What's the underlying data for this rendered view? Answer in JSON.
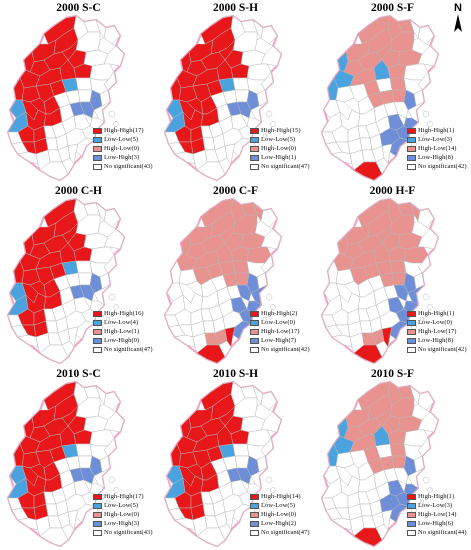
{
  "colors": {
    "high_high": "#e8181a",
    "low_low": "#4aa3df",
    "high_low": "#e89390",
    "low_high": "#6e8fd8",
    "no_significant": "#ffffff",
    "boundary": "#b9b9b9",
    "outline": "#f0a8c8"
  },
  "north_arrow": {
    "label": "N",
    "icon": "north-arrow-icon"
  },
  "legend_labels": {
    "high_high": "High-High",
    "low_low": "Low-Low",
    "high_low": "High-Low",
    "low_high": "Low-High",
    "no_significant": "No significant"
  },
  "panels": [
    {
      "title": "2000 S-C",
      "pattern": "north-high",
      "legend": [
        "High-High(17)",
        "Low-Low(5)",
        "High-Low(0)",
        "Low-High(3)",
        "No significant(43)"
      ]
    },
    {
      "title": "2000 S-H",
      "pattern": "north-high",
      "legend": [
        "High-High(15)",
        "Low-Low(5)",
        "High-Low(0)",
        "Low-High(1)",
        "No significant(47)"
      ]
    },
    {
      "title": "2000 S-F",
      "pattern": "highlow-center",
      "legend": [
        "High-High(1)",
        "Low-Low(3)",
        "High-Low(14)",
        "Low-High(8)",
        "No significant(42)"
      ]
    },
    {
      "title": "2000 C-H",
      "pattern": "north-high",
      "legend": [
        "High-High(16)",
        "Low-Low(4)",
        "High-Low(1)",
        "Low-High(0)",
        "No significant(47)"
      ]
    },
    {
      "title": "2000 C-F",
      "pattern": "highlow-wide",
      "legend": [
        "High-High(2)",
        "Low-Low(0)",
        "High-Low(17)",
        "Low-High(7)",
        "No significant(42)"
      ]
    },
    {
      "title": "2000 H-F",
      "pattern": "highlow-wide",
      "legend": [
        "High-High(1)",
        "Low-Low(0)",
        "High-Low(17)",
        "Low-High(8)",
        "No significant(42)"
      ]
    },
    {
      "title": "2010 S-C",
      "pattern": "north-high",
      "legend": [
        "High-High(17)",
        "Low-Low(5)",
        "High-Low(0)",
        "Low-High(3)",
        "No significant(43)"
      ]
    },
    {
      "title": "2010 S-H",
      "pattern": "north-high",
      "legend": [
        "High-High(14)",
        "Low-Low(5)",
        "High-Low(0)",
        "Low-High(2)",
        "No significant(47)"
      ]
    },
    {
      "title": "2010 S-F",
      "pattern": "highlow-center",
      "legend": [
        "High-High(1)",
        "Low-Low(3)",
        "High-Low(14)",
        "Low-High(6)",
        "No significant(44)"
      ]
    }
  ]
}
